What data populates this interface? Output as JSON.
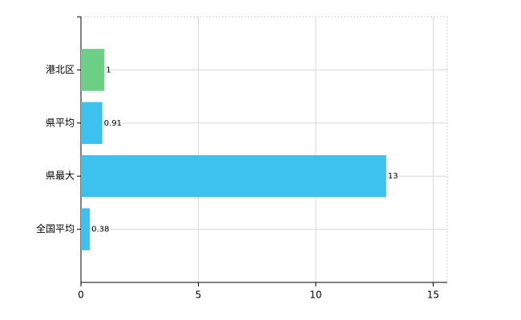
{
  "chart_data": {
    "type": "hbar",
    "categories": [
      "港北区",
      "県平均",
      "県最大",
      "全国平均"
    ],
    "values": [
      1,
      0.91,
      13,
      0.38
    ],
    "colors": [
      "#6ccf86",
      "#3dc2f0",
      "#3dc2f0",
      "#3dc2f0"
    ],
    "xlim": [
      0,
      15.6
    ],
    "xticks": [
      0,
      5,
      10,
      15
    ],
    "grid": true
  }
}
